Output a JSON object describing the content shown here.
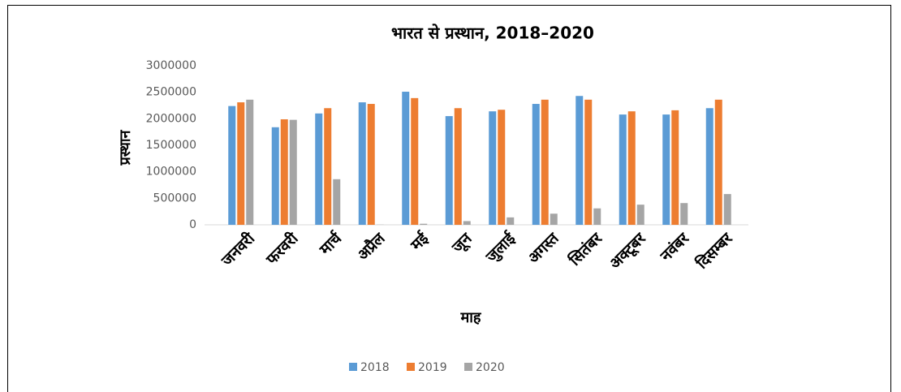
{
  "chart_data": {
    "type": "bar",
    "title": "भारत से प्रस्थान, 2018–2020",
    "x_label": "माह",
    "y_label": "प्रस्थान",
    "categories": [
      "जनवरी",
      "फरवरी",
      "मार्च",
      "अप्रैल",
      "मई",
      "जून",
      "जुलाई",
      "अगस्त",
      "सितंबर",
      "अक्टूबर",
      "नवंबर",
      "दिसम्बर"
    ],
    "series": [
      {
        "name": "2018",
        "color": "#5b9bd5",
        "values": [
          2240000,
          1840000,
          2100000,
          2310000,
          2510000,
          2050000,
          2140000,
          2280000,
          2430000,
          2080000,
          2080000,
          2200000
        ]
      },
      {
        "name": "2019",
        "color": "#ed7d31",
        "values": [
          2310000,
          1990000,
          2200000,
          2280000,
          2390000,
          2200000,
          2170000,
          2360000,
          2360000,
          2140000,
          2160000,
          2360000
        ]
      },
      {
        "name": "2020",
        "color": "#a5a5a5",
        "values": [
          2360000,
          1980000,
          860000,
          3000,
          20000,
          70000,
          140000,
          210000,
          310000,
          380000,
          410000,
          580000
        ]
      }
    ],
    "ylim": [
      0,
      3000000
    ],
    "yticks": [
      0,
      500000,
      1000000,
      1500000,
      2000000,
      2500000,
      3000000
    ],
    "grid": false,
    "legend": "bottom"
  }
}
